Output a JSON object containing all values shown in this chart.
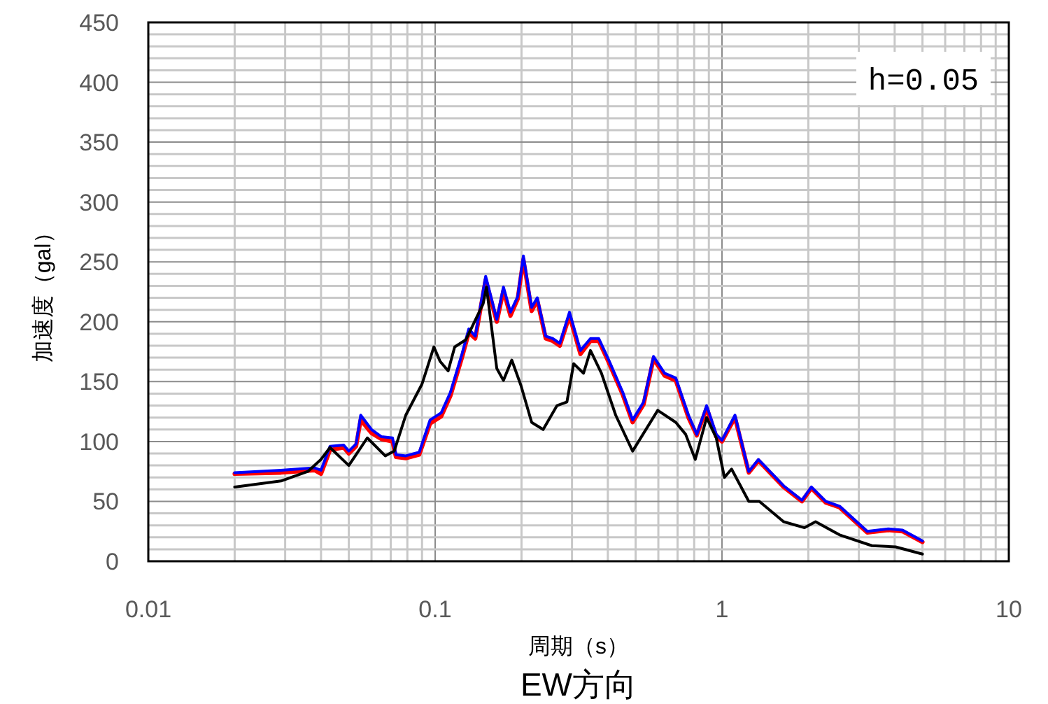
{
  "chart_data": {
    "type": "line",
    "title": "EW方向",
    "xlabel": "周期（s）",
    "ylabel": "加速度（gal）",
    "log": "x",
    "grid": true,
    "line_style": "solid",
    "xlim": [
      0.01,
      10
    ],
    "xticks": [
      0.01,
      0.1,
      1,
      10
    ],
    "ylim": [
      0,
      450
    ],
    "yticks": [
      0,
      50,
      100,
      150,
      200,
      250,
      300,
      350,
      400,
      450
    ],
    "annotations": [
      "h=0.05"
    ],
    "series": [
      {
        "color": "#ff0000",
        "x": [
          0.02,
          0.029,
          0.038,
          0.04,
          0.043,
          0.048,
          0.05,
          0.053,
          0.055,
          0.06,
          0.065,
          0.071,
          0.073,
          0.079,
          0.088,
          0.096,
          0.105,
          0.113,
          0.124,
          0.131,
          0.138,
          0.15,
          0.164,
          0.173,
          0.183,
          0.194,
          0.203,
          0.217,
          0.227,
          0.243,
          0.257,
          0.272,
          0.294,
          0.321,
          0.348,
          0.372,
          0.403,
          0.451,
          0.488,
          0.533,
          0.577,
          0.631,
          0.69,
          0.764,
          0.817,
          0.884,
          0.955,
          1.0,
          1.11,
          1.24,
          1.34,
          1.64,
          1.9,
          2.05,
          2.3,
          2.57,
          3.21,
          3.8,
          4.26,
          5
        ],
        "values": [
          73,
          74,
          76,
          73,
          93,
          95,
          90,
          96,
          118,
          107,
          102,
          100,
          87,
          86,
          89,
          115,
          121,
          138,
          170,
          191,
          186,
          235,
          200,
          226,
          205,
          219,
          252,
          209,
          218,
          186,
          184,
          180,
          205,
          173,
          184,
          184,
          166,
          139,
          116,
          131,
          169,
          155,
          151,
          120,
          105,
          128,
          104,
          100,
          120,
          74,
          84,
          62,
          50,
          61,
          49,
          45,
          24,
          26,
          25,
          16
        ]
      },
      {
        "color": "#0000ff",
        "x": [
          0.02,
          0.029,
          0.038,
          0.04,
          0.043,
          0.048,
          0.05,
          0.053,
          0.055,
          0.06,
          0.065,
          0.071,
          0.073,
          0.079,
          0.088,
          0.096,
          0.105,
          0.113,
          0.124,
          0.131,
          0.138,
          0.15,
          0.164,
          0.173,
          0.183,
          0.194,
          0.203,
          0.217,
          0.227,
          0.243,
          0.257,
          0.272,
          0.294,
          0.321,
          0.348,
          0.372,
          0.403,
          0.451,
          0.488,
          0.533,
          0.577,
          0.631,
          0.69,
          0.764,
          0.817,
          0.884,
          0.955,
          1.0,
          1.11,
          1.24,
          1.34,
          1.64,
          1.9,
          2.05,
          2.3,
          2.57,
          3.21,
          3.8,
          4.26,
          5
        ],
        "values": [
          74,
          76,
          78,
          76,
          96,
          97,
          92,
          98,
          122,
          110,
          104,
          103,
          89,
          88,
          91,
          118,
          124,
          141,
          173,
          194,
          188,
          238,
          202,
          229,
          208,
          221,
          255,
          212,
          220,
          188,
          186,
          182,
          208,
          176,
          186,
          186,
          168,
          141,
          118,
          133,
          171,
          157,
          153,
          122,
          106,
          130,
          106,
          101,
          122,
          75,
          85,
          63,
          51,
          62,
          50,
          46,
          25,
          27,
          26,
          17
        ]
      },
      {
        "color": "#000000",
        "x": [
          0.02,
          0.029,
          0.036,
          0.04,
          0.043,
          0.05,
          0.058,
          0.067,
          0.072,
          0.079,
          0.09,
          0.099,
          0.104,
          0.111,
          0.117,
          0.128,
          0.147,
          0.151,
          0.164,
          0.173,
          0.185,
          0.199,
          0.217,
          0.238,
          0.266,
          0.288,
          0.304,
          0.329,
          0.348,
          0.38,
          0.426,
          0.488,
          0.597,
          0.69,
          0.747,
          0.807,
          0.884,
          0.955,
          1.02,
          1.08,
          1.24,
          1.35,
          1.64,
          1.94,
          2.12,
          2.57,
          3.33,
          4.03,
          5
        ],
        "values": [
          62,
          67,
          75,
          85,
          95,
          80,
          103,
          88,
          92,
          122,
          148,
          179,
          167,
          159,
          179,
          185,
          215,
          229,
          161,
          151,
          168,
          147,
          116,
          110,
          130,
          133,
          165,
          157,
          176,
          157,
          122,
          92,
          126,
          116,
          106,
          85,
          120,
          103,
          70,
          77,
          50,
          50,
          33,
          28,
          33,
          22,
          13,
          12,
          6
        ]
      }
    ]
  }
}
